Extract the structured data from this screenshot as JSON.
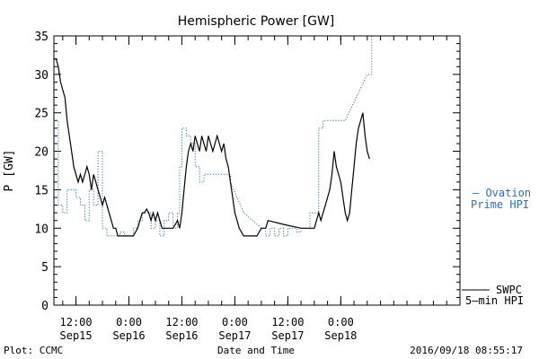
{
  "chart_data": {
    "type": "line",
    "title": "Hemispheric Power [GW]",
    "ylabel": "P [GW]",
    "xlabel": "Date and Time",
    "ylim": [
      0,
      35
    ],
    "yticks": [
      0,
      5,
      10,
      15,
      20,
      25,
      30,
      35
    ],
    "xlim_hours": [
      0,
      92
    ],
    "x_ticks": [
      {
        "hour": 5,
        "time": "12:00",
        "date": "Sep15"
      },
      {
        "hour": 17,
        "time": "0:00",
        "date": "Sep16"
      },
      {
        "hour": 29,
        "time": "12:00",
        "date": "Sep16"
      },
      {
        "hour": 41,
        "time": "0:00",
        "date": "Sep17"
      },
      {
        "hour": 53,
        "time": "12:00",
        "date": "Sep17"
      },
      {
        "hour": 65,
        "time": "0:00",
        "date": "Sep18"
      }
    ],
    "series": [
      {
        "name": "SWPC 5-min HPI",
        "color": "#000000",
        "style": "solid",
        "points": [
          [
            0,
            32
          ],
          [
            0.5,
            32
          ],
          [
            1,
            31
          ],
          [
            1.5,
            29
          ],
          [
            2,
            28
          ],
          [
            2.5,
            27
          ],
          [
            3,
            24
          ],
          [
            3.5,
            22
          ],
          [
            4,
            20
          ],
          [
            4.5,
            18
          ],
          [
            5,
            17
          ],
          [
            5.5,
            16
          ],
          [
            6,
            17
          ],
          [
            6.5,
            16
          ],
          [
            7,
            17
          ],
          [
            7.5,
            18
          ],
          [
            8,
            17
          ],
          [
            8.5,
            15
          ],
          [
            9,
            17
          ],
          [
            9.5,
            16
          ],
          [
            10,
            15
          ],
          [
            10.5,
            14
          ],
          [
            11,
            13
          ],
          [
            11.5,
            14
          ],
          [
            12,
            13
          ],
          [
            12.5,
            12
          ],
          [
            13,
            11
          ],
          [
            13.5,
            10
          ],
          [
            14,
            10
          ],
          [
            14.5,
            9
          ],
          [
            15,
            9
          ],
          [
            16,
            9
          ],
          [
            17,
            9
          ],
          [
            18,
            9
          ],
          [
            18.5,
            9.5
          ],
          [
            19,
            10
          ],
          [
            19.5,
            11
          ],
          [
            20,
            12
          ],
          [
            20.5,
            12
          ],
          [
            21,
            12.5
          ],
          [
            21.5,
            12
          ],
          [
            22,
            11
          ],
          [
            22.5,
            12
          ],
          [
            23,
            11
          ],
          [
            23.5,
            12
          ],
          [
            24,
            11
          ],
          [
            24.5,
            10
          ],
          [
            25,
            10
          ],
          [
            26,
            10
          ],
          [
            27,
            10
          ],
          [
            28,
            11
          ],
          [
            28.5,
            10
          ],
          [
            29,
            12
          ],
          [
            29.5,
            15
          ],
          [
            30,
            18
          ],
          [
            30.5,
            20
          ],
          [
            31,
            21
          ],
          [
            31.5,
            20
          ],
          [
            32,
            22
          ],
          [
            32.5,
            21
          ],
          [
            33,
            20
          ],
          [
            33.5,
            22
          ],
          [
            34,
            21
          ],
          [
            34.5,
            20
          ],
          [
            35,
            22
          ],
          [
            35.5,
            21
          ],
          [
            36,
            20
          ],
          [
            36.5,
            21
          ],
          [
            37,
            22
          ],
          [
            37.5,
            21
          ],
          [
            38,
            20
          ],
          [
            38.5,
            21
          ],
          [
            39,
            19
          ],
          [
            39.5,
            18
          ],
          [
            40,
            16
          ],
          [
            40.5,
            14
          ],
          [
            41,
            12
          ],
          [
            41.5,
            11
          ],
          [
            42,
            10
          ],
          [
            43,
            9
          ],
          [
            44,
            9
          ],
          [
            45,
            9
          ],
          [
            46,
            9
          ],
          [
            47,
            10
          ],
          [
            48,
            10
          ],
          [
            48.5,
            11
          ],
          [
            52,
            10.5
          ],
          [
            56,
            10
          ],
          [
            58,
            10
          ],
          [
            59,
            10
          ],
          [
            59.5,
            11
          ],
          [
            60,
            12
          ],
          [
            60.5,
            11
          ],
          [
            61,
            12
          ],
          [
            61.5,
            13
          ],
          [
            62,
            14
          ],
          [
            62.5,
            15
          ],
          [
            63,
            17
          ],
          [
            63.5,
            20
          ],
          [
            64,
            18
          ],
          [
            64.5,
            17
          ],
          [
            65,
            16
          ],
          [
            65.5,
            14
          ],
          [
            66,
            12
          ],
          [
            66.5,
            11
          ],
          [
            67,
            12
          ],
          [
            67.5,
            15
          ],
          [
            68,
            18
          ],
          [
            68.5,
            21
          ],
          [
            69,
            23
          ],
          [
            69.5,
            24
          ],
          [
            70,
            25
          ],
          [
            70.5,
            22
          ],
          [
            71,
            20
          ],
          [
            71.5,
            19
          ]
        ]
      },
      {
        "name": "Ovation Prime HPI",
        "color": "#2f6fb8",
        "style": "dotted",
        "points": [
          [
            0,
            24
          ],
          [
            1,
            24
          ],
          [
            1,
            13
          ],
          [
            2,
            13
          ],
          [
            2,
            12
          ],
          [
            3,
            12
          ],
          [
            3,
            15
          ],
          [
            5,
            15
          ],
          [
            5,
            14
          ],
          [
            6,
            14
          ],
          [
            6,
            13
          ],
          [
            7,
            13
          ],
          [
            7,
            11
          ],
          [
            8,
            11
          ],
          [
            8,
            15
          ],
          [
            9,
            15
          ],
          [
            9,
            13
          ],
          [
            10,
            13
          ],
          [
            10,
            20
          ],
          [
            11,
            20
          ],
          [
            11,
            10
          ],
          [
            12,
            10
          ],
          [
            12,
            9
          ],
          [
            15,
            9
          ],
          [
            15,
            9.5
          ],
          [
            16,
            9.5
          ],
          [
            16,
            9
          ],
          [
            18,
            9
          ],
          [
            18,
            10
          ],
          [
            19,
            10
          ],
          [
            19,
            11
          ],
          [
            20,
            11
          ],
          [
            20,
            12
          ],
          [
            22,
            12
          ],
          [
            22,
            10
          ],
          [
            23,
            10
          ],
          [
            23,
            11
          ],
          [
            24,
            11
          ],
          [
            24,
            9
          ],
          [
            25,
            9
          ],
          [
            25,
            11
          ],
          [
            26,
            11
          ],
          [
            26,
            12
          ],
          [
            27,
            12
          ],
          [
            27,
            10
          ],
          [
            28,
            10
          ],
          [
            28,
            12
          ],
          [
            28.5,
            12
          ],
          [
            28.5,
            18
          ],
          [
            29,
            18
          ],
          [
            29,
            23
          ],
          [
            30,
            23
          ],
          [
            30,
            22
          ],
          [
            31,
            22
          ],
          [
            31,
            21
          ],
          [
            32,
            21
          ],
          [
            32,
            18
          ],
          [
            33,
            18
          ],
          [
            33,
            16
          ],
          [
            34,
            16
          ],
          [
            34,
            17
          ],
          [
            36,
            17
          ],
          [
            40,
            17
          ],
          [
            40,
            16
          ],
          [
            43,
            12
          ],
          [
            47,
            10
          ],
          [
            48,
            10
          ],
          [
            48,
            9
          ],
          [
            49,
            9
          ],
          [
            49,
            10
          ],
          [
            50,
            10
          ],
          [
            50,
            9
          ],
          [
            51,
            9
          ],
          [
            51,
            10
          ],
          [
            52,
            10
          ],
          [
            52,
            9
          ],
          [
            53,
            9
          ],
          [
            53,
            10
          ],
          [
            55,
            10
          ],
          [
            55,
            9.5
          ],
          [
            56,
            9.5
          ],
          [
            56,
            10
          ],
          [
            58,
            10
          ],
          [
            58,
            12
          ],
          [
            60,
            12
          ],
          [
            60,
            23
          ],
          [
            61,
            23
          ],
          [
            61,
            24
          ],
          [
            66,
            24
          ],
          [
            71,
            30
          ],
          [
            72,
            30
          ],
          [
            72,
            35
          ]
        ]
      }
    ],
    "annotations": {
      "ovation_label_1": "– Ovation",
      "ovation_label_2": "Prime HPI",
      "swpc_label_1": "SWPC",
      "swpc_label_2": "5–min HPI"
    },
    "footer": {
      "left": "Plot: CCMC",
      "right": "2016/09/18 08:55:17"
    }
  }
}
